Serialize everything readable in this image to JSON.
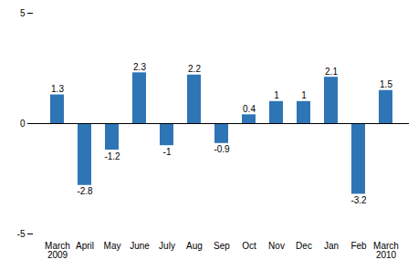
{
  "chart_data": {
    "type": "bar",
    "categories": [
      "March\n2009",
      "April",
      "May",
      "June",
      "July",
      "Aug",
      "Sep",
      "Oct",
      "Nov",
      "Dec",
      "Jan",
      "Feb",
      "March\n2010"
    ],
    "values": [
      1.3,
      -2.8,
      -1.2,
      2.3,
      -1.0,
      2.2,
      -0.9,
      0.4,
      1.0,
      1.0,
      2.1,
      -3.2,
      1.5
    ],
    "color": "#2e75b6",
    "ylim": [
      -5,
      5
    ],
    "yticks": [
      -5,
      0,
      5
    ],
    "grid": false,
    "data_labels": true
  }
}
